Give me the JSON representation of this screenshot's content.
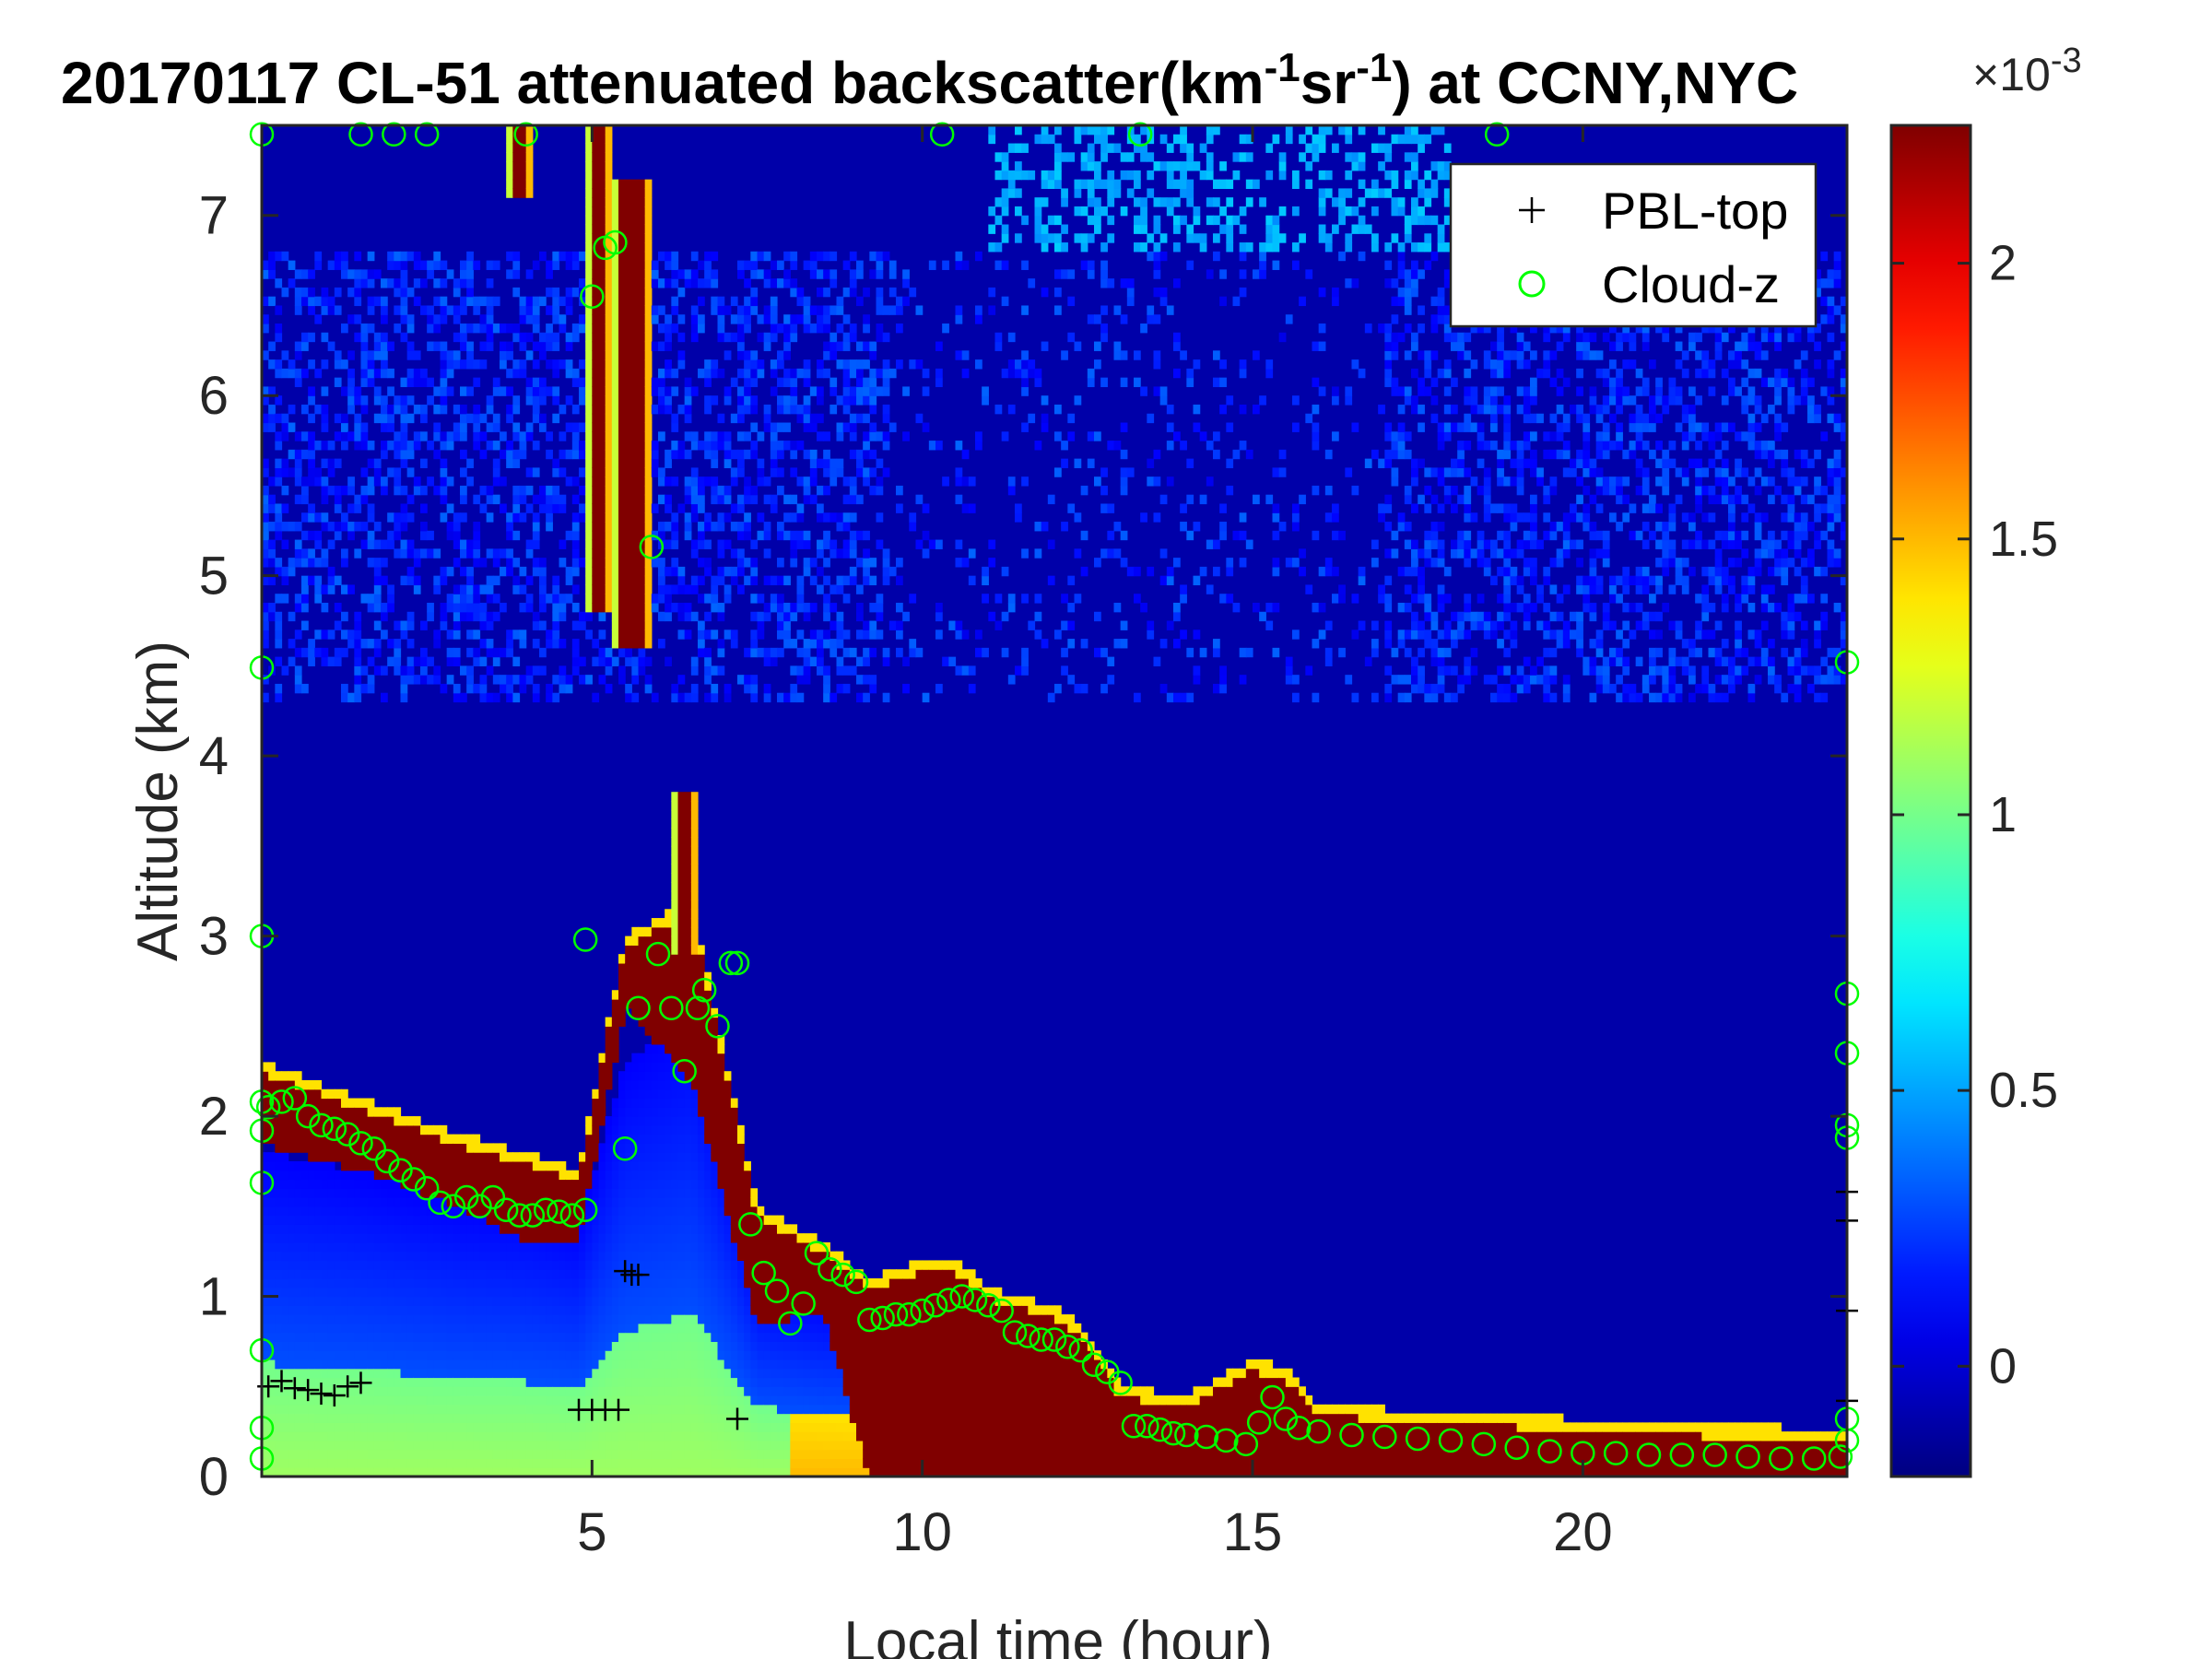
{
  "chart_data": {
    "type": "heatmap",
    "title": {
      "prefix": "20170117  CL-51 attenuated backscatter(km",
      "sup1": "-1",
      "mid": "sr",
      "sup2": "-1",
      "suffix": ") at CCNY,NYC"
    },
    "xlabel": "Local time (hour)",
    "ylabel": "Altitude (km)",
    "xlim": [
      0,
      24
    ],
    "ylim": [
      0,
      7.5
    ],
    "x_ticks": [
      5,
      10,
      15,
      20
    ],
    "y_ticks": [
      0,
      1,
      2,
      3,
      4,
      5,
      6,
      7
    ],
    "grid": false,
    "legend": {
      "placement": "top-right",
      "entries": [
        {
          "label": "PBL-top",
          "marker": "+",
          "color": "#000000"
        },
        {
          "label": "Cloud-z",
          "marker": "o",
          "color": "#00ff00"
        }
      ]
    },
    "colorbar": {
      "colormap": "jet",
      "range": [
        -0.0002,
        0.00225
      ],
      "ticks": [
        0,
        0.5,
        1,
        1.5,
        2
      ],
      "tick_labels": [
        "0",
        "0.5",
        "1",
        "1.5",
        "2"
      ],
      "exponent_base": "×10",
      "exponent_power": "-3"
    },
    "field": {
      "description_units": "km^-1 sr^-1",
      "background_value": -0.0001,
      "aerosol_layer_top_km": [
        [
          0.0,
          1.8
        ],
        [
          1.5,
          1.7
        ],
        [
          3.0,
          1.55
        ],
        [
          4.0,
          1.5
        ],
        [
          4.8,
          1.4
        ],
        [
          5.5,
          2.3
        ],
        [
          6.5,
          2.6
        ],
        [
          7.5,
          1.1
        ],
        [
          8.5,
          1.0
        ],
        [
          9.2,
          0.95
        ]
      ],
      "cloud_band_bottom_km": [
        [
          0.0,
          1.85
        ],
        [
          1.5,
          1.7
        ],
        [
          3.0,
          1.5
        ],
        [
          4.0,
          1.3
        ],
        [
          4.8,
          1.3
        ],
        [
          5.5,
          2.6
        ],
        [
          6.5,
          2.2
        ],
        [
          7.5,
          0.85
        ],
        [
          8.5,
          0.9
        ],
        [
          9.2,
          0.0
        ]
      ],
      "cloud_band_top_km": [
        [
          0.0,
          2.3
        ],
        [
          1.5,
          2.1
        ],
        [
          3.0,
          1.9
        ],
        [
          4.0,
          1.8
        ],
        [
          4.8,
          1.7
        ],
        [
          5.5,
          3.0
        ],
        [
          6.5,
          3.2
        ],
        [
          7.5,
          1.5
        ],
        [
          8.5,
          1.3
        ],
        [
          9.2,
          1.1
        ],
        [
          10.0,
          1.2
        ],
        [
          10.5,
          1.2
        ],
        [
          11.0,
          1.05
        ],
        [
          12.0,
          0.95
        ],
        [
          12.5,
          0.8
        ],
        [
          13.0,
          0.5
        ],
        [
          14.0,
          0.45
        ],
        [
          15.0,
          0.65
        ],
        [
          15.5,
          0.6
        ],
        [
          16.0,
          0.4
        ],
        [
          18.0,
          0.35
        ],
        [
          20.0,
          0.32
        ],
        [
          22.0,
          0.28
        ],
        [
          24.0,
          0.27
        ]
      ],
      "high_cloud_streaks": [
        {
          "t0": 4.9,
          "t1": 5.3,
          "z0": 4.8,
          "z1": 7.5
        },
        {
          "t0": 5.3,
          "t1": 5.9,
          "z0": 4.6,
          "z1": 7.2
        },
        {
          "t0": 6.2,
          "t1": 6.6,
          "z0": 2.9,
          "z1": 3.8
        },
        {
          "t0": 3.7,
          "t1": 4.1,
          "z0": 7.1,
          "z1": 7.5
        }
      ]
    },
    "series": [
      {
        "name": "PBL-top",
        "marker": "+",
        "points": [
          [
            0.1,
            0.5
          ],
          [
            0.3,
            0.53
          ],
          [
            0.5,
            0.49
          ],
          [
            0.7,
            0.48
          ],
          [
            0.9,
            0.46
          ],
          [
            1.1,
            0.45
          ],
          [
            1.3,
            0.5
          ],
          [
            1.5,
            0.52
          ],
          [
            4.8,
            0.37
          ],
          [
            5.0,
            0.37
          ],
          [
            5.2,
            0.37
          ],
          [
            5.4,
            0.37
          ],
          [
            5.5,
            1.14
          ],
          [
            5.6,
            1.12
          ],
          [
            5.7,
            1.12
          ],
          [
            7.2,
            0.32
          ],
          [
            24.0,
            0.92
          ],
          [
            24.0,
            1.42
          ],
          [
            24.0,
            1.58
          ],
          [
            24.0,
            0.42
          ]
        ]
      },
      {
        "name": "Cloud-z",
        "marker": "o",
        "points": [
          [
            0.0,
            7.45
          ],
          [
            0.0,
            4.49
          ],
          [
            0.0,
            3.0
          ],
          [
            0.0,
            2.08
          ],
          [
            0.0,
            1.92
          ],
          [
            0.0,
            1.63
          ],
          [
            0.0,
            0.7
          ],
          [
            0.0,
            0.27
          ],
          [
            0.0,
            0.1
          ],
          [
            0.1,
            2.05
          ],
          [
            0.3,
            2.08
          ],
          [
            0.5,
            2.1
          ],
          [
            0.7,
            2.0
          ],
          [
            0.9,
            1.95
          ],
          [
            1.1,
            1.93
          ],
          [
            1.3,
            1.9
          ],
          [
            1.5,
            1.85
          ],
          [
            1.7,
            1.82
          ],
          [
            1.9,
            1.75
          ],
          [
            2.1,
            1.7
          ],
          [
            2.3,
            1.65
          ],
          [
            2.5,
            1.6
          ],
          [
            2.7,
            1.52
          ],
          [
            2.9,
            1.5
          ],
          [
            3.1,
            1.55
          ],
          [
            3.3,
            1.5
          ],
          [
            3.5,
            1.55
          ],
          [
            3.7,
            1.48
          ],
          [
            3.9,
            1.45
          ],
          [
            4.1,
            1.45
          ],
          [
            4.3,
            1.48
          ],
          [
            4.5,
            1.47
          ],
          [
            4.7,
            1.45
          ],
          [
            4.9,
            1.48
          ],
          [
            4.9,
            2.98
          ],
          [
            5.0,
            6.55
          ],
          [
            5.2,
            6.82
          ],
          [
            5.35,
            6.85
          ],
          [
            5.5,
            1.82
          ],
          [
            5.7,
            2.6
          ],
          [
            5.9,
            5.16
          ],
          [
            6.0,
            2.9
          ],
          [
            6.2,
            2.6
          ],
          [
            6.4,
            2.25
          ],
          [
            6.6,
            2.6
          ],
          [
            6.7,
            2.7
          ],
          [
            6.9,
            2.5
          ],
          [
            7.1,
            2.85
          ],
          [
            7.2,
            2.85
          ],
          [
            7.4,
            1.4
          ],
          [
            7.6,
            1.13
          ],
          [
            7.8,
            1.03
          ],
          [
            8.0,
            0.85
          ],
          [
            8.2,
            0.96
          ],
          [
            8.4,
            1.24
          ],
          [
            8.6,
            1.15
          ],
          [
            8.8,
            1.12
          ],
          [
            9.0,
            1.08
          ],
          [
            9.2,
            0.87
          ],
          [
            9.4,
            0.88
          ],
          [
            9.6,
            0.9
          ],
          [
            9.8,
            0.9
          ],
          [
            10.0,
            0.92
          ],
          [
            10.2,
            0.95
          ],
          [
            10.4,
            0.98
          ],
          [
            10.6,
            1.0
          ],
          [
            10.8,
            0.98
          ],
          [
            11.0,
            0.95
          ],
          [
            11.2,
            0.92
          ],
          [
            11.4,
            0.8
          ],
          [
            11.6,
            0.78
          ],
          [
            11.8,
            0.76
          ],
          [
            12.0,
            0.76
          ],
          [
            12.2,
            0.72
          ],
          [
            12.4,
            0.7
          ],
          [
            12.6,
            0.62
          ],
          [
            12.8,
            0.58
          ],
          [
            13.0,
            0.52
          ],
          [
            13.2,
            0.28
          ],
          [
            13.4,
            0.28
          ],
          [
            13.6,
            0.26
          ],
          [
            13.8,
            0.24
          ],
          [
            14.0,
            0.23
          ],
          [
            14.3,
            0.22
          ],
          [
            14.6,
            0.2
          ],
          [
            14.9,
            0.18
          ],
          [
            15.1,
            0.3
          ],
          [
            15.3,
            0.44
          ],
          [
            15.5,
            0.32
          ],
          [
            15.7,
            0.27
          ],
          [
            16.0,
            0.25
          ],
          [
            16.5,
            0.23
          ],
          [
            17.0,
            0.22
          ],
          [
            17.5,
            0.21
          ],
          [
            18.0,
            0.2
          ],
          [
            18.5,
            0.18
          ],
          [
            19.0,
            0.16
          ],
          [
            19.5,
            0.14
          ],
          [
            20.0,
            0.13
          ],
          [
            20.5,
            0.13
          ],
          [
            21.0,
            0.12
          ],
          [
            21.5,
            0.12
          ],
          [
            22.0,
            0.12
          ],
          [
            22.5,
            0.11
          ],
          [
            23.0,
            0.1
          ],
          [
            23.5,
            0.1
          ],
          [
            23.9,
            0.11
          ],
          [
            24.0,
            4.52
          ],
          [
            24.0,
            2.68
          ],
          [
            24.0,
            2.35
          ],
          [
            24.0,
            1.88
          ],
          [
            24.0,
            1.95
          ],
          [
            24.0,
            0.32
          ],
          [
            24.0,
            0.2
          ],
          [
            1.5,
            7.45
          ],
          [
            2.0,
            7.45
          ],
          [
            2.5,
            7.45
          ],
          [
            4.0,
            7.45
          ],
          [
            10.3,
            7.45
          ],
          [
            13.3,
            7.45
          ],
          [
            18.7,
            7.45
          ]
        ]
      }
    ]
  }
}
